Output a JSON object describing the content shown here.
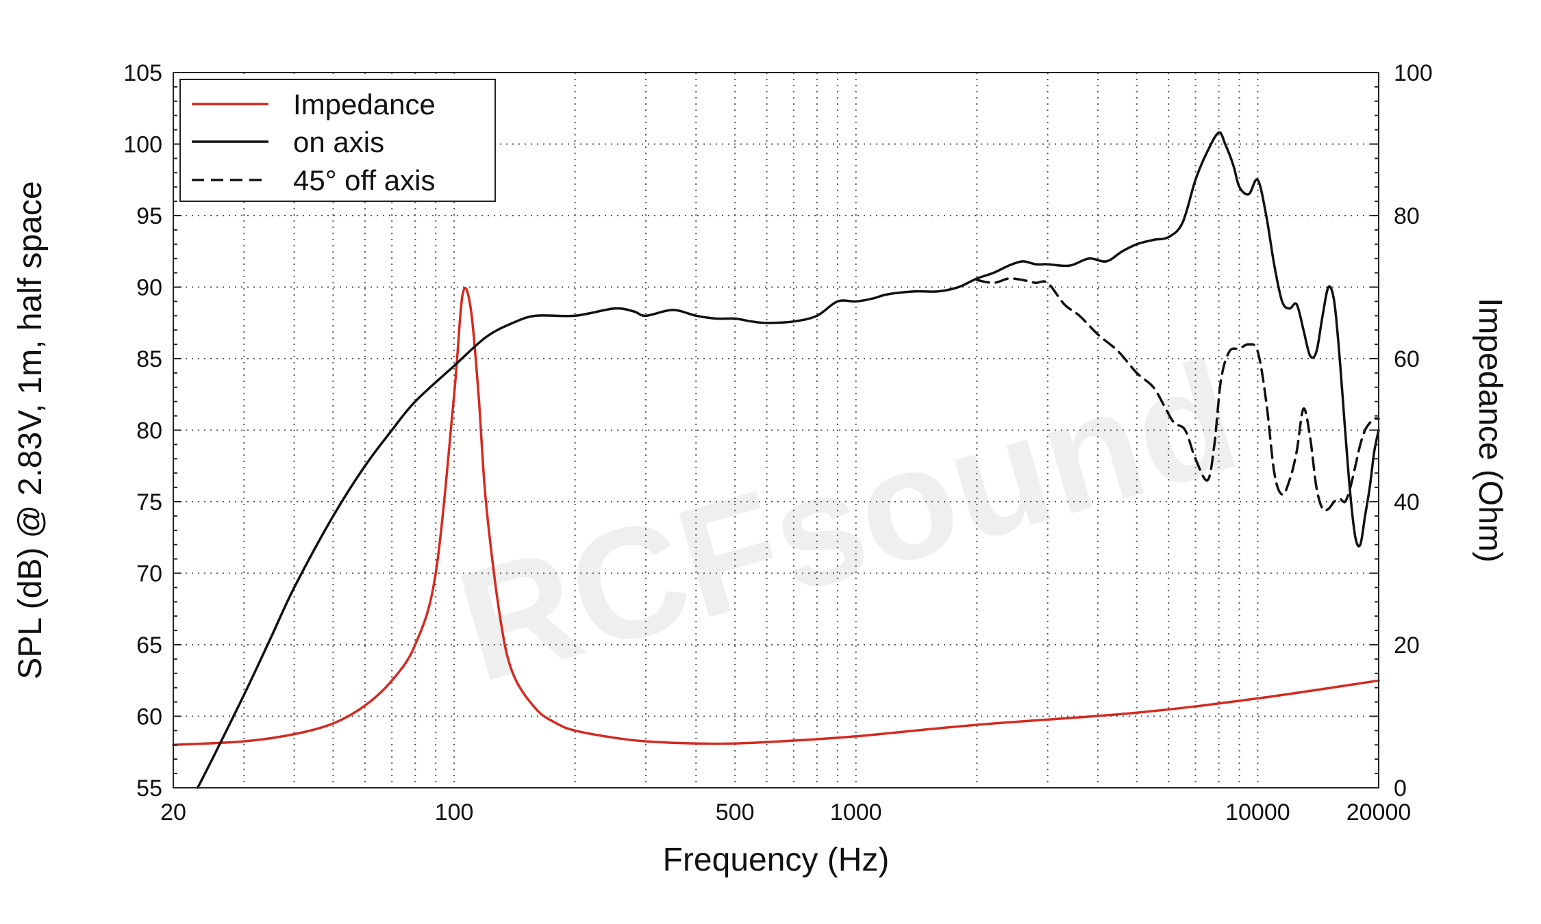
{
  "watermark": "RCFsound",
  "chart_data": {
    "type": "line",
    "xlabel": "Frequency (Hz)",
    "ylabel": "SPL (dB) @ 2.83V, 1m, half space",
    "y2label": "Impedance (Ohm)",
    "xscale": "log",
    "xlim": [
      20,
      20000
    ],
    "ylim": [
      55,
      105
    ],
    "y2lim": [
      0,
      100
    ],
    "xticks": [
      20,
      100,
      500,
      1000,
      10000,
      20000
    ],
    "xtick_labels": [
      "20",
      "100",
      "500",
      "1000",
      "10000",
      "20000"
    ],
    "yticks": [
      55,
      60,
      65,
      70,
      75,
      80,
      85,
      90,
      95,
      100,
      105
    ],
    "y2ticks": [
      0,
      20,
      40,
      60,
      80,
      100
    ],
    "grid": true,
    "legend": "top-left",
    "series": [
      {
        "name": "Impedance",
        "axis": "right",
        "color": "#d42a20",
        "style": "solid",
        "x": [
          20,
          30,
          40,
          50,
          60,
          70,
          80,
          90,
          100,
          105,
          110,
          115,
          120,
          130,
          140,
          160,
          180,
          200,
          250,
          300,
          400,
          500,
          700,
          1000,
          2000,
          5000,
          10000,
          20000
        ],
        "y": [
          6,
          6.5,
          7.5,
          9,
          11.5,
          15,
          20,
          30,
          55,
          69,
          67,
          55,
          40,
          24,
          16,
          11,
          9,
          8,
          7,
          6.5,
          6.2,
          6.2,
          6.6,
          7.2,
          8.8,
          10.5,
          12.5,
          15
        ]
      },
      {
        "name": "on axis",
        "axis": "left",
        "color": "#111111",
        "style": "solid",
        "x": [
          23,
          25,
          30,
          35,
          40,
          50,
          60,
          70,
          80,
          100,
          120,
          140,
          160,
          200,
          250,
          280,
          300,
          350,
          400,
          450,
          500,
          550,
          600,
          700,
          800,
          900,
          1000,
          1100,
          1200,
          1400,
          1600,
          1800,
          2000,
          2200,
          2400,
          2600,
          2800,
          3000,
          3400,
          3800,
          4200,
          4600,
          5000,
          5500,
          6000,
          6500,
          7000,
          7500,
          8000,
          8300,
          8700,
          9000,
          9500,
          10000,
          10500,
          11000,
          11500,
          12000,
          12500,
          13000,
          13500,
          14000,
          14500,
          15000,
          15500,
          16000,
          16500,
          17000,
          17500,
          18000,
          18500,
          19000,
          19500,
          20000
        ],
        "y": [
          55,
          57,
          61.5,
          65.5,
          69,
          74,
          77.5,
          80,
          82,
          84.5,
          86.5,
          87.5,
          88,
          88,
          88.5,
          88.3,
          88,
          88.4,
          88,
          87.8,
          87.8,
          87.6,
          87.5,
          87.6,
          88,
          89,
          89,
          89.2,
          89.5,
          89.7,
          89.7,
          90,
          90.6,
          91,
          91.5,
          91.8,
          91.6,
          91.6,
          91.5,
          92,
          91.8,
          92.5,
          93,
          93.3,
          93.5,
          94.5,
          97.5,
          99.5,
          100.8,
          100,
          98.5,
          97,
          96.5,
          97.5,
          95,
          91.5,
          89,
          88.5,
          88.8,
          87,
          85.2,
          85.5,
          88,
          90,
          89,
          85,
          80,
          75.5,
          72.5,
          72,
          74,
          76,
          78.5,
          80
        ]
      },
      {
        "name": "45° off axis",
        "axis": "left",
        "color": "#111111",
        "style": "dashed",
        "x": [
          2000,
          2200,
          2400,
          2600,
          2800,
          3000,
          3300,
          3600,
          4000,
          4500,
          5000,
          5500,
          5900,
          6200,
          6600,
          7000,
          7500,
          7800,
          8100,
          8500,
          9000,
          9500,
          10000,
          10500,
          11000,
          11500,
          12000,
          12500,
          13000,
          13500,
          14000,
          14500,
          15000,
          15500,
          16000,
          16500,
          17000,
          17500,
          18000,
          18500,
          19000,
          19500,
          20000
        ],
        "y": [
          90.5,
          90.3,
          90.6,
          90.5,
          90.3,
          90.3,
          88.8,
          88,
          86.7,
          85.5,
          84,
          83,
          81.5,
          80.5,
          80,
          78,
          76.5,
          79,
          83.5,
          85.5,
          85.7,
          86,
          85.5,
          82,
          77,
          75.5,
          76.5,
          78.5,
          81.5,
          79.5,
          76,
          74.5,
          74.5,
          75,
          75.2,
          75,
          76,
          77.5,
          79,
          80,
          80.5,
          80.8,
          80.8
        ]
      }
    ]
  }
}
